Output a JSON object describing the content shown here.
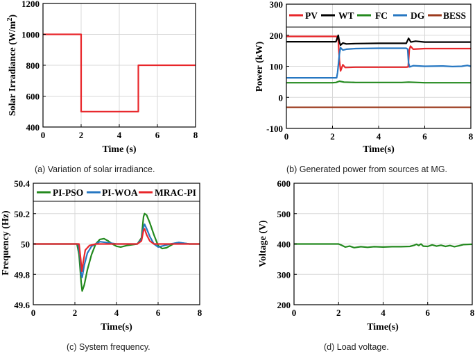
{
  "colors": {
    "red": "#e8262a",
    "black": "#000000",
    "green": "#23891e",
    "blue": "#2677c2",
    "brown": "#9b3a1c",
    "grid": "#d8d8d8"
  },
  "chart_data": [
    {
      "id": "a",
      "type": "line",
      "caption": "(a)  Variation of solar irradiance.",
      "xlabel": "Time (s)",
      "ylabel": "Solar Irradiance (W/m",
      "ylabel_sup": "2",
      "ylabel_close": ")",
      "xlim": [
        0,
        8
      ],
      "ylim": [
        400,
        1200
      ],
      "xticks": [
        0,
        2,
        4,
        6,
        8
      ],
      "yticks": [
        400,
        600,
        800,
        1000,
        1200
      ],
      "legend": [],
      "series": [
        {
          "name": "Irradiance",
          "color": "#e8262a",
          "x": [
            0,
            2,
            2,
            5,
            5,
            8
          ],
          "y": [
            1000,
            1000,
            500,
            500,
            800,
            800
          ]
        }
      ]
    },
    {
      "id": "b",
      "type": "line",
      "caption": "(b) Generated power from sources at MG.",
      "xlabel": "Time(s)",
      "ylabel": "Power (kW)",
      "xlim": [
        0,
        8
      ],
      "ylim": [
        -100,
        300
      ],
      "xticks": [
        0,
        2,
        4,
        6,
        8
      ],
      "yticks": [
        -100,
        0,
        100,
        200,
        300
      ],
      "legend": [
        "PV",
        "WT",
        "FC",
        "DG",
        "BESS"
      ],
      "series": [
        {
          "name": "PV",
          "color": "#e8262a",
          "x": [
            0,
            2.18,
            2.25,
            2.3,
            2.35,
            2.45,
            2.55,
            3.0,
            4.0,
            5.0,
            5.2,
            5.28,
            5.33,
            5.38,
            5.5,
            6.0,
            7.0,
            8.0
          ],
          "y": [
            196,
            196,
            185,
            120,
            85,
            105,
            96,
            97,
            97,
            97,
            97,
            98,
            152,
            165,
            155,
            157,
            157,
            157
          ]
        },
        {
          "name": "WT",
          "color": "#000000",
          "x": [
            0,
            2.15,
            2.25,
            2.3,
            2.35,
            2.45,
            2.6,
            3.0,
            4.0,
            5.0,
            5.2,
            5.3,
            5.4,
            5.6,
            6.0,
            7.0,
            8.0
          ],
          "y": [
            179,
            179,
            200,
            178,
            168,
            175,
            172,
            173,
            174,
            174,
            174,
            190,
            178,
            181,
            178,
            178,
            178
          ]
        },
        {
          "name": "FC",
          "color": "#23891e",
          "x": [
            0,
            2.0,
            2.15,
            2.3,
            2.5,
            3.0,
            4.0,
            5.0,
            5.3,
            6.0,
            7.0,
            8.0
          ],
          "y": [
            47,
            47,
            48,
            52,
            49,
            48,
            48,
            48,
            49,
            47,
            47,
            47
          ]
        },
        {
          "name": "DG",
          "color": "#2677c2",
          "x": [
            0,
            2.18,
            2.22,
            2.3,
            2.35,
            2.45,
            2.6,
            3.0,
            4.0,
            5.0,
            5.2,
            5.26,
            5.3,
            5.35,
            5.5,
            6.0,
            6.8,
            7.2,
            7.6,
            7.85,
            8.0
          ],
          "y": [
            63,
            63,
            80,
            140,
            160,
            152,
            155,
            157,
            158,
            158,
            158,
            155,
            110,
            98,
            102,
            100,
            101,
            99,
            100,
            103,
            100
          ]
        },
        {
          "name": "BESS",
          "color": "#9b3a1c",
          "x": [
            0,
            8
          ],
          "y": [
            -32,
            -32
          ]
        }
      ]
    },
    {
      "id": "c",
      "type": "line",
      "caption": "(c) System frequency.",
      "xlabel": "Time(s)",
      "ylabel": "Frequency (Hz)",
      "xlim": [
        0,
        8
      ],
      "ylim": [
        49.6,
        50.4
      ],
      "xticks": [
        0,
        2,
        4,
        6,
        8
      ],
      "yticks": [
        49.6,
        49.8,
        50,
        50.2,
        50.4
      ],
      "ytick_labels": [
        "49.6",
        "49.8",
        "50",
        "50.2",
        "50.4"
      ],
      "legend": [
        "PI-PSO",
        "PI-WOA",
        "MRAC-PI"
      ],
      "series": [
        {
          "name": "PI-PSO",
          "color": "#23891e",
          "x": [
            0,
            2.1,
            2.2,
            2.3,
            2.35,
            2.45,
            2.6,
            2.8,
            3.0,
            3.2,
            3.4,
            3.6,
            3.8,
            4.0,
            4.2,
            4.5,
            5.0,
            5.2,
            5.3,
            5.35,
            5.45,
            5.6,
            5.8,
            6.0,
            6.2,
            6.4,
            6.6,
            6.8,
            7.0,
            7.2,
            7.5,
            8.0
          ],
          "y": [
            50,
            50,
            49.93,
            49.75,
            49.69,
            49.73,
            49.83,
            49.93,
            50.0,
            50.03,
            50.035,
            50.02,
            50.0,
            49.985,
            49.98,
            49.99,
            50.0,
            50.04,
            50.18,
            50.2,
            50.19,
            50.14,
            50.06,
            49.99,
            49.97,
            49.975,
            49.99,
            50.005,
            50.01,
            50.005,
            50.0,
            50.0
          ]
        },
        {
          "name": "PI-WOA",
          "color": "#2677c2",
          "x": [
            0,
            2.15,
            2.25,
            2.3,
            2.35,
            2.45,
            2.6,
            2.8,
            3.0,
            3.2,
            3.5,
            4.0,
            4.5,
            5.0,
            5.2,
            5.3,
            5.35,
            5.45,
            5.6,
            5.8,
            6.0,
            6.3,
            6.6,
            7.0,
            7.5,
            8.0
          ],
          "y": [
            50,
            50,
            49.92,
            49.8,
            49.78,
            49.86,
            49.94,
            49.985,
            50.0,
            50.015,
            50.01,
            50.0,
            50.0,
            50.0,
            50.03,
            50.11,
            50.13,
            50.1,
            50.05,
            50.0,
            49.98,
            49.99,
            50.0,
            50.01,
            50.0,
            50.0
          ]
        },
        {
          "name": "MRAC-PI",
          "color": "#e8262a",
          "x": [
            0,
            2.2,
            2.28,
            2.33,
            2.4,
            2.5,
            2.7,
            3.0,
            3.5,
            4.0,
            5.0,
            5.2,
            5.3,
            5.35,
            5.45,
            5.6,
            5.8,
            6.5,
            8.0
          ],
          "y": [
            50,
            50,
            49.9,
            49.82,
            49.88,
            49.96,
            49.99,
            50.0,
            50.0,
            50.0,
            50.0,
            50.02,
            50.09,
            50.1,
            50.06,
            50.02,
            50.0,
            50.0,
            50.0
          ]
        }
      ]
    },
    {
      "id": "d",
      "type": "line",
      "caption": "(d) Load voltage.",
      "xlabel": "Time(s)",
      "ylabel": "Voltage (V)",
      "xlim": [
        0,
        8
      ],
      "ylim": [
        200,
        600
      ],
      "xticks": [
        0,
        2,
        4,
        6,
        8
      ],
      "yticks": [
        200,
        300,
        400,
        500,
        600
      ],
      "legend": [],
      "series": [
        {
          "name": "Voltage",
          "color": "#23891e",
          "x": [
            0,
            2.0,
            2.1,
            2.3,
            2.5,
            2.7,
            3.0,
            3.3,
            3.6,
            4.0,
            4.4,
            4.8,
            5.2,
            5.4,
            5.5,
            5.6,
            5.7,
            5.8,
            6.0,
            6.2,
            6.4,
            6.6,
            6.8,
            7.0,
            7.2,
            7.4,
            7.6,
            8.0
          ],
          "y": [
            400,
            400,
            397,
            390,
            393,
            388,
            391,
            389,
            391,
            390,
            391,
            391,
            392,
            396,
            399,
            395,
            400,
            393,
            392,
            397,
            393,
            396,
            392,
            395,
            391,
            394,
            398,
            399
          ]
        }
      ]
    }
  ]
}
